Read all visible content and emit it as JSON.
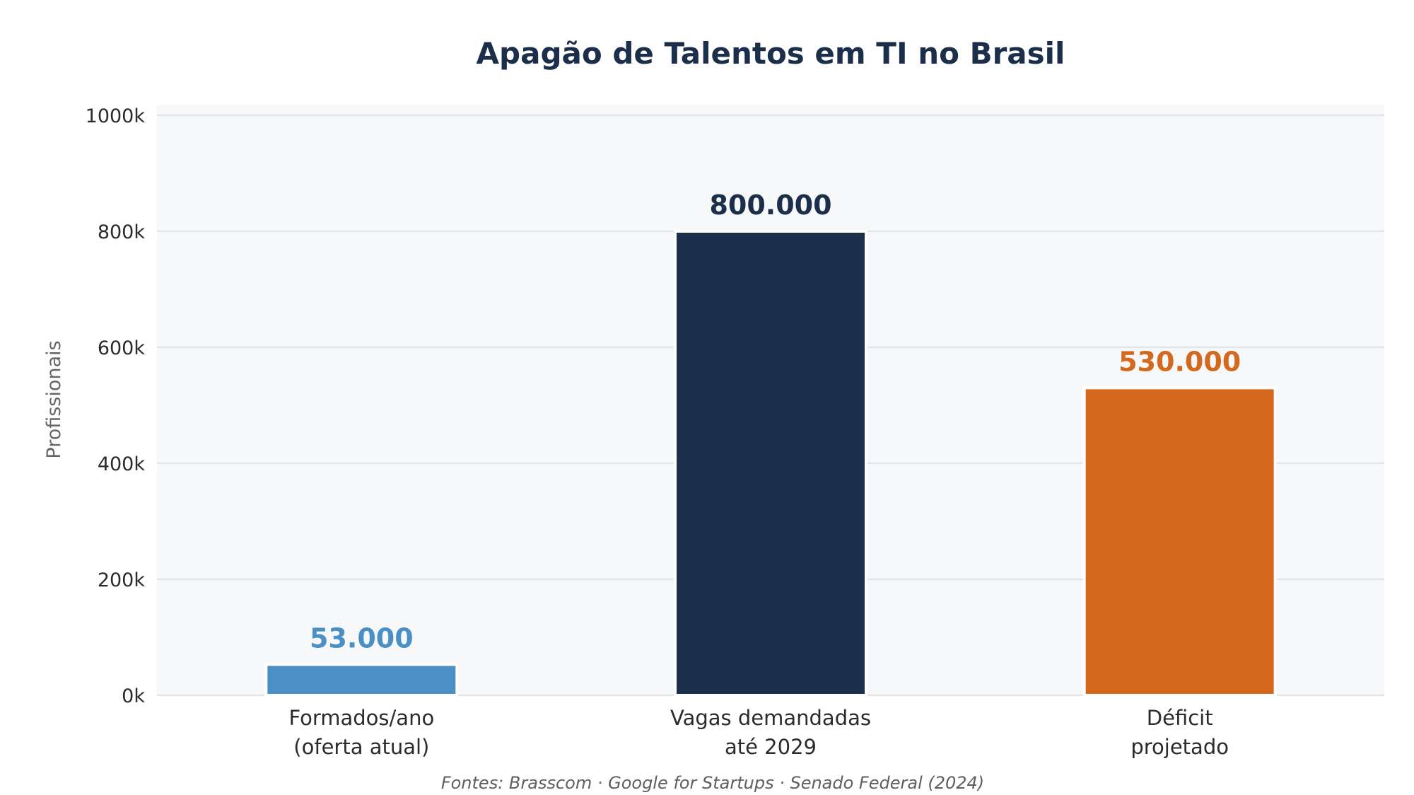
{
  "chart_data": {
    "type": "bar",
    "title": "Apagão de Talentos em TI no Brasil",
    "xlabel": "",
    "ylabel": "Profissionais",
    "ylim": [
      0,
      1000000
    ],
    "yticks": [
      0,
      200000,
      400000,
      600000,
      800000,
      1000000
    ],
    "ytick_labels": [
      "0k",
      "200k",
      "400k",
      "600k",
      "800k",
      "1000k"
    ],
    "grid": true,
    "legend": "none",
    "categories": [
      [
        "Formados/ano",
        "(oferta atual)"
      ],
      [
        "Vagas demandadas",
        "até 2029"
      ],
      [
        "Déficit",
        "projetado"
      ]
    ],
    "values": [
      53000,
      800000,
      530000
    ],
    "value_labels": [
      "53.000",
      "800.000",
      "530.000"
    ],
    "colors": [
      "#4a90c4",
      "#1b2e4a",
      "#d4691e"
    ],
    "source_note": "Fontes: Brasscom · Google for Startups · Senado Federal (2024)"
  },
  "theme": {
    "title_color": "#1b2e4a",
    "plot_background": "#f7f8fa",
    "grid_color": "#e3e5e8",
    "tick_text_color": "#2b2b2b",
    "axis_label_color": "#666666",
    "footnote_color": "#5f5f5f"
  }
}
